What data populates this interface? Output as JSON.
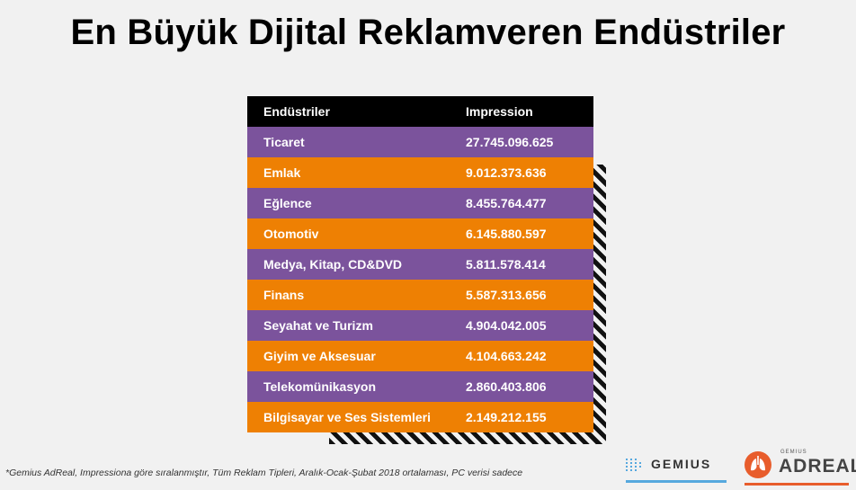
{
  "title": "En Büyük Dijital Reklamveren Endüstriler",
  "table": {
    "headers": [
      "Endüstriler",
      "Impression"
    ],
    "rows": [
      {
        "name": "Ticaret",
        "value": "27.745.096.625"
      },
      {
        "name": "Emlak",
        "value": "9.012.373.636"
      },
      {
        "name": "Eğlence",
        "value": "8.455.764.477"
      },
      {
        "name": "Otomotiv",
        "value": "6.145.880.597"
      },
      {
        "name": "Medya, Kitap, CD&DVD",
        "value": "5.811.578.414"
      },
      {
        "name": "Finans",
        "value": "5.587.313.656"
      },
      {
        "name": "Seyahat ve Turizm",
        "value": "4.904.042.005"
      },
      {
        "name": "Giyim ve Aksesuar",
        "value": "4.104.663.242"
      },
      {
        "name": "Telekomünikasyon",
        "value": "2.860.403.806"
      },
      {
        "name": "Bilgisayar ve Ses Sistemleri",
        "value": "2.149.212.155"
      }
    ]
  },
  "footnote": "*Gemius AdReal, Impressiona göre sıralanmıştır, Tüm Reklam Tipleri, Aralık-Ocak-Şubat 2018 ortalaması, PC verisi sadece",
  "logos": {
    "gemius": "GEMIUS",
    "adreal_small": "GEMIUS",
    "adreal": "ADREAL"
  },
  "colors": {
    "header": "#000000",
    "purple": "#7b539c",
    "orange": "#ee8003",
    "gemius_accent": "#56a8de",
    "adreal_accent": "#e85d2c"
  }
}
